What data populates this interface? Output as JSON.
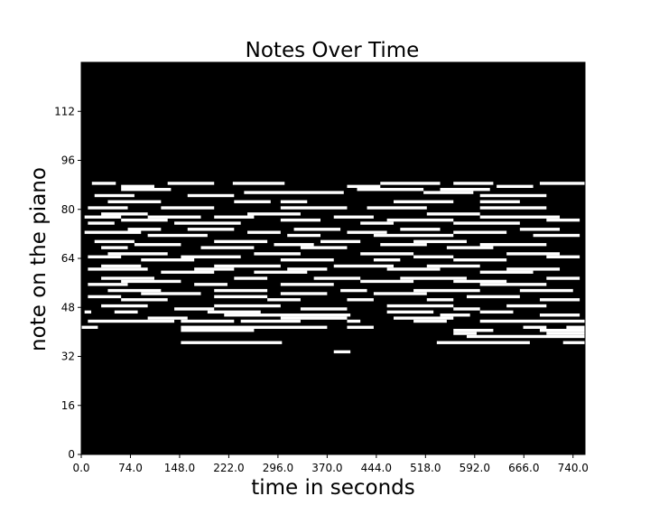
{
  "chart_data": {
    "type": "heatmap",
    "title": "Notes Over Time",
    "xlabel": "time in seconds",
    "ylabel": "note on the piano",
    "xlim": [
      0,
      758
    ],
    "ylim": [
      0,
      128
    ],
    "x_ticks": [
      0,
      74,
      148,
      222,
      296,
      370,
      444,
      518,
      592,
      666,
      740
    ],
    "x_tick_labels": [
      "0.0",
      "74.0",
      "148.0",
      "222.0",
      "296.0",
      "370.0",
      "444.0",
      "518.0",
      "592.0",
      "666.0",
      "740.0"
    ],
    "y_ticks": [
      0,
      16,
      32,
      48,
      64,
      80,
      96,
      112
    ],
    "y_tick_labels": [
      "0",
      "16",
      "32",
      "48",
      "64",
      "80",
      "96",
      "112"
    ],
    "background_color": "#000000",
    "note_color": "#ffffff",
    "grid": false,
    "legend": "none",
    "dense_pitch_range": [
      43,
      88
    ],
    "notes": [
      [
        88,
        16,
        52
      ],
      [
        88,
        130,
        200
      ],
      [
        88,
        228,
        306
      ],
      [
        88,
        450,
        540
      ],
      [
        88,
        560,
        620
      ],
      [
        88,
        690,
        758
      ],
      [
        87,
        60,
        110
      ],
      [
        87,
        400,
        450
      ],
      [
        87,
        625,
        680
      ],
      [
        86,
        60,
        135
      ],
      [
        86,
        415,
        515
      ],
      [
        86,
        540,
        615
      ],
      [
        85,
        245,
        395
      ],
      [
        85,
        515,
        590
      ],
      [
        84,
        20,
        80
      ],
      [
        84,
        160,
        230
      ],
      [
        84,
        600,
        700
      ],
      [
        82,
        40,
        120
      ],
      [
        82,
        230,
        285
      ],
      [
        82,
        300,
        340
      ],
      [
        82,
        470,
        560
      ],
      [
        82,
        600,
        660
      ],
      [
        80,
        10,
        70
      ],
      [
        80,
        120,
        200
      ],
      [
        80,
        300,
        400
      ],
      [
        80,
        430,
        520
      ],
      [
        80,
        600,
        700
      ],
      [
        78,
        30,
        100
      ],
      [
        78,
        250,
        330
      ],
      [
        78,
        520,
        600
      ],
      [
        77,
        5,
        60
      ],
      [
        77,
        100,
        180
      ],
      [
        77,
        200,
        260
      ],
      [
        77,
        380,
        440
      ],
      [
        77,
        600,
        720
      ],
      [
        76,
        60,
        130
      ],
      [
        76,
        300,
        360
      ],
      [
        76,
        460,
        560
      ],
      [
        76,
        700,
        750
      ],
      [
        75,
        10,
        50
      ],
      [
        75,
        140,
        240
      ],
      [
        75,
        420,
        470
      ],
      [
        75,
        560,
        660
      ],
      [
        73,
        70,
        120
      ],
      [
        73,
        160,
        230
      ],
      [
        73,
        320,
        390
      ],
      [
        73,
        480,
        540
      ],
      [
        73,
        660,
        720
      ],
      [
        72,
        5,
        90
      ],
      [
        72,
        250,
        300
      ],
      [
        72,
        400,
        460
      ],
      [
        72,
        560,
        640
      ],
      [
        71,
        100,
        190
      ],
      [
        71,
        310,
        360
      ],
      [
        71,
        440,
        560
      ],
      [
        71,
        680,
        750
      ],
      [
        69,
        20,
        80
      ],
      [
        69,
        200,
        280
      ],
      [
        69,
        360,
        420
      ],
      [
        69,
        500,
        580
      ],
      [
        68,
        80,
        150
      ],
      [
        68,
        290,
        350
      ],
      [
        68,
        450,
        520
      ],
      [
        68,
        600,
        700
      ],
      [
        67,
        30,
        70
      ],
      [
        67,
        180,
        260
      ],
      [
        67,
        330,
        400
      ],
      [
        67,
        550,
        620
      ],
      [
        65,
        40,
        130
      ],
      [
        65,
        260,
        330
      ],
      [
        65,
        420,
        500
      ],
      [
        65,
        640,
        720
      ],
      [
        64,
        10,
        60
      ],
      [
        64,
        150,
        240
      ],
      [
        64,
        500,
        560
      ],
      [
        64,
        700,
        750
      ],
      [
        63,
        90,
        170
      ],
      [
        63,
        300,
        380
      ],
      [
        63,
        440,
        480
      ],
      [
        63,
        560,
        640
      ],
      [
        61,
        30,
        90
      ],
      [
        61,
        200,
        300
      ],
      [
        61,
        380,
        470
      ],
      [
        61,
        520,
        600
      ],
      [
        60,
        10,
        100
      ],
      [
        60,
        170,
        230
      ],
      [
        60,
        310,
        370
      ],
      [
        60,
        460,
        540
      ],
      [
        60,
        640,
        720
      ],
      [
        59,
        120,
        200
      ],
      [
        59,
        260,
        340
      ],
      [
        59,
        600,
        680
      ],
      [
        57,
        30,
        110
      ],
      [
        57,
        230,
        280
      ],
      [
        57,
        350,
        420
      ],
      [
        57,
        480,
        580
      ],
      [
        57,
        700,
        750
      ],
      [
        56,
        60,
        150
      ],
      [
        56,
        420,
        500
      ],
      [
        56,
        560,
        640
      ],
      [
        55,
        10,
        70
      ],
      [
        55,
        170,
        220
      ],
      [
        55,
        300,
        380
      ],
      [
        55,
        600,
        700
      ],
      [
        53,
        40,
        120
      ],
      [
        53,
        200,
        280
      ],
      [
        53,
        390,
        430
      ],
      [
        53,
        500,
        600
      ],
      [
        53,
        660,
        740
      ],
      [
        52,
        90,
        180
      ],
      [
        52,
        300,
        370
      ],
      [
        52,
        440,
        520
      ],
      [
        51,
        10,
        60
      ],
      [
        51,
        200,
        280
      ],
      [
        51,
        580,
        660
      ],
      [
        50,
        60,
        130
      ],
      [
        50,
        280,
        330
      ],
      [
        50,
        400,
        440
      ],
      [
        50,
        520,
        560
      ],
      [
        50,
        690,
        750
      ],
      [
        48,
        30,
        100
      ],
      [
        48,
        200,
        300
      ],
      [
        48,
        460,
        560
      ],
      [
        48,
        640,
        700
      ],
      [
        47,
        140,
        200
      ],
      [
        47,
        330,
        400
      ],
      [
        47,
        560,
        600
      ],
      [
        46,
        5,
        15
      ],
      [
        46,
        50,
        85
      ],
      [
        46,
        190,
        270
      ],
      [
        46,
        460,
        530
      ],
      [
        46,
        600,
        650
      ],
      [
        45,
        215,
        405
      ],
      [
        45,
        540,
        585
      ],
      [
        45,
        690,
        750
      ],
      [
        44,
        100,
        160
      ],
      [
        44,
        300,
        400
      ],
      [
        44,
        470,
        560
      ],
      [
        43,
        10,
        140
      ],
      [
        43,
        150,
        230
      ],
      [
        43,
        240,
        330
      ],
      [
        43,
        400,
        420
      ],
      [
        43,
        500,
        550
      ],
      [
        43,
        600,
        758
      ],
      [
        41,
        0,
        25
      ],
      [
        41,
        150,
        370
      ],
      [
        41,
        400,
        440
      ],
      [
        41,
        665,
        700
      ],
      [
        41,
        730,
        758
      ],
      [
        40,
        150,
        260
      ],
      [
        40,
        560,
        620
      ],
      [
        40,
        690,
        758
      ],
      [
        39,
        560,
        595
      ],
      [
        39,
        700,
        758
      ],
      [
        38,
        580,
        758
      ],
      [
        36,
        150,
        302
      ],
      [
        36,
        535,
        675
      ],
      [
        36,
        725,
        758
      ],
      [
        33,
        380,
        405
      ]
    ]
  }
}
